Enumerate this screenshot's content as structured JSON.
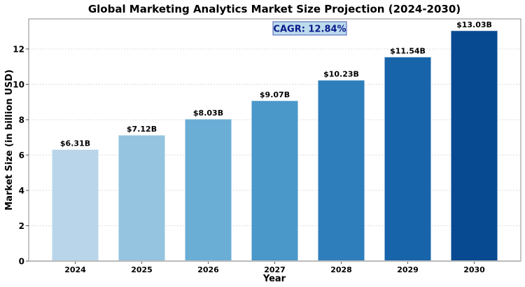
{
  "chart_data": {
    "type": "bar",
    "title": "Global Marketing Analytics Market Size Projection (2024-2030)",
    "xlabel": "Year",
    "ylabel": "Market Size (in billion USD)",
    "categories": [
      "2024",
      "2025",
      "2026",
      "2027",
      "2028",
      "2029",
      "2030"
    ],
    "values": [
      6.31,
      7.12,
      8.03,
      9.07,
      10.23,
      11.54,
      13.03
    ],
    "data_labels": [
      "$6.31B",
      "$7.12B",
      "$8.03B",
      "$9.07B",
      "$10.23B",
      "$11.54B",
      "$13.03B"
    ],
    "colors": [
      "#b9d5ea",
      "#94c4df",
      "#6aaed6",
      "#4a98c9",
      "#2e7ebc",
      "#1764ab",
      "#084a91"
    ],
    "yticks": [
      0,
      2,
      4,
      6,
      8,
      10,
      12
    ],
    "ylim": [
      0,
      13.7
    ],
    "grid": true,
    "annotation": "CAGR: 12.84%"
  }
}
